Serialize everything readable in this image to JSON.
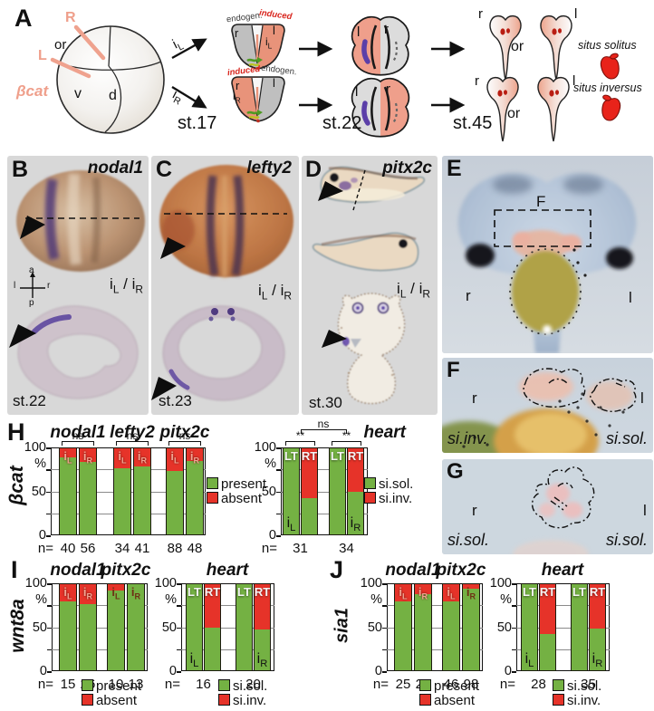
{
  "colors": {
    "present_green": "#74b143",
    "absent_red": "#e63329",
    "salmon": "#ef9f8b",
    "purple_stain": "#5b3fa8",
    "panel_bg": "#d8d8d8",
    "heart_red": "#e8231a"
  },
  "panels": {
    "a": {
      "label": "A",
      "egg": {
        "r": "R",
        "or": "or",
        "l": "L",
        "gene": "βcat",
        "v": "v",
        "d": "d"
      },
      "inject_left": "iL",
      "inject_right": "iR",
      "st17": "st.17",
      "st22": "st.22",
      "st45": "st.45",
      "grp_top": {
        "left_label": "endogen.",
        "right_label": "induced",
        "l_half": "r",
        "r_half": "l",
        "injected": "iL"
      },
      "grp_bottom": {
        "left_label": "induced",
        "right_label": "endogen.",
        "l_half": "r",
        "injected": "iR",
        "r_half": "l"
      },
      "neurula_top": {
        "left": "l",
        "right": "r"
      },
      "neurula_bottom": {
        "left": "l",
        "right": "r"
      },
      "tad_top": {
        "left": "r",
        "mid": "or",
        "right": "l"
      },
      "tad_bottom": {
        "left": "r",
        "mid": "or",
        "right": "l"
      },
      "situs_solitus": "situs solitus",
      "situs_inversus": "situs inversus"
    },
    "b": {
      "label": "B",
      "gene": "nodal1",
      "compass": {
        "a": "a",
        "p": "p",
        "l": "l",
        "r": "r"
      },
      "condition": "iL / iR",
      "stage": "st.22"
    },
    "c": {
      "label": "C",
      "gene": "lefty2",
      "condition": "iL / iR",
      "stage": "st.23"
    },
    "d": {
      "label": "D",
      "gene": "pitx2c",
      "condition": "iL / iR",
      "stage": "st.30"
    },
    "e": {
      "label": "E",
      "inset_label": "F",
      "left": "r",
      "right": "l"
    },
    "f": {
      "label": "F",
      "left": "r",
      "right": "l",
      "status_left": "si.inv.",
      "status_right": "si.sol."
    },
    "g": {
      "label": "G",
      "left": "r",
      "right": "l",
      "status_left": "si.sol.",
      "status_right": "si.sol."
    }
  },
  "chart_data": [
    {
      "id": "h-genes",
      "panel_label": "H",
      "row_label": "βcat",
      "type": "bar",
      "stacked": true,
      "ylabel": "%",
      "yticks": [
        100,
        50,
        0
      ],
      "ylim": [
        0,
        100
      ],
      "n_prefix": "n=",
      "groups": [
        {
          "title": "nodal1",
          "sig": "ns",
          "bars": [
            {
              "label": "iL",
              "value_pct": 90,
              "n": 40
            },
            {
              "label": "iR",
              "value_pct": 84,
              "n": 56
            }
          ]
        },
        {
          "title": "lefty2",
          "sig": "ns",
          "bars": [
            {
              "label": "iL",
              "value_pct": 77,
              "n": 34
            },
            {
              "label": "iR",
              "value_pct": 79,
              "n": 41
            }
          ]
        },
        {
          "title": "pitx2c",
          "sig": "ns",
          "bars": [
            {
              "label": "iL",
              "value_pct": 74,
              "n": 88
            },
            {
              "label": "iR",
              "value_pct": 85,
              "n": 48
            }
          ]
        }
      ],
      "legend": [
        {
          "color": "#74b143",
          "label": "present"
        },
        {
          "color": "#e63329",
          "label": "absent"
        }
      ]
    },
    {
      "id": "h-heart",
      "title": "heart",
      "type": "bar",
      "stacked": true,
      "ylabel": "%",
      "yticks": [
        100,
        50,
        0
      ],
      "ylim": [
        0,
        100
      ],
      "n_prefix": "n=",
      "span_sig": "ns",
      "groups": [
        {
          "sig": "**",
          "n": 31,
          "bars": [
            {
              "label": "LT",
              "value_pct": 100,
              "bottom_label": "iL"
            },
            {
              "label": "RT",
              "value_pct": 42
            }
          ]
        },
        {
          "sig": "**",
          "n": 34,
          "bars": [
            {
              "label": "LT",
              "value_pct": 100
            },
            {
              "label": "RT",
              "value_pct": 49,
              "bottom_label": "iR"
            }
          ]
        }
      ],
      "legend": [
        {
          "color": "#74b143",
          "label": "si.sol."
        },
        {
          "color": "#e63329",
          "label": "si.inv."
        }
      ]
    },
    {
      "id": "i-genes",
      "panel_label": "I",
      "row_label": "wnt8a",
      "type": "bar",
      "stacked": true,
      "ylabel": "%",
      "yticks": [
        100,
        50,
        0
      ],
      "ylim": [
        0,
        100
      ],
      "n_prefix": "n=",
      "groups": [
        {
          "title": "nodal1",
          "bars": [
            {
              "label": "iL",
              "value_pct": 80,
              "n": 15
            },
            {
              "label": "iR",
              "value_pct": 77,
              "n": 26
            }
          ]
        },
        {
          "title": "pitx2c",
          "bars": [
            {
              "label": "iL",
              "value_pct": 93,
              "n": 10
            },
            {
              "label": "iR",
              "value_pct": 100,
              "n": 13
            }
          ]
        }
      ],
      "legend": [
        {
          "color": "#74b143",
          "label": "present"
        },
        {
          "color": "#e63329",
          "label": "absent"
        }
      ]
    },
    {
      "id": "i-heart",
      "title": "heart",
      "type": "bar",
      "stacked": true,
      "ylabel": "%",
      "yticks": [
        100,
        50,
        0
      ],
      "ylim": [
        0,
        100
      ],
      "n_prefix": "n=",
      "groups": [
        {
          "n": 16,
          "bars": [
            {
              "label": "LT",
              "value_pct": 100,
              "bottom_label": "iL"
            },
            {
              "label": "RT",
              "value_pct": 50
            }
          ]
        },
        {
          "n": 20,
          "bars": [
            {
              "label": "LT",
              "value_pct": 100
            },
            {
              "label": "RT",
              "value_pct": 47,
              "bottom_label": "iR"
            }
          ]
        }
      ],
      "legend": [
        {
          "color": "#74b143",
          "label": "si.sol."
        },
        {
          "color": "#e63329",
          "label": "si.inv."
        }
      ]
    },
    {
      "id": "j-genes",
      "panel_label": "J",
      "row_label": "sia1",
      "type": "bar",
      "stacked": true,
      "ylabel": "%",
      "yticks": [
        100,
        50,
        0
      ],
      "ylim": [
        0,
        100
      ],
      "n_prefix": "n=",
      "groups": [
        {
          "title": "nodal1",
          "bars": [
            {
              "label": "iL",
              "value_pct": 80,
              "n": 25
            },
            {
              "label": "iR",
              "value_pct": 88,
              "n": 22
            }
          ]
        },
        {
          "title": "pitx2c",
          "bars": [
            {
              "label": "iL",
              "value_pct": 80,
              "n": 46
            },
            {
              "label": "iR",
              "value_pct": 95,
              "n": 98
            }
          ]
        }
      ],
      "legend": [
        {
          "color": "#74b143",
          "label": "present"
        },
        {
          "color": "#e63329",
          "label": "absent"
        }
      ]
    },
    {
      "id": "j-heart",
      "title": "heart",
      "type": "bar",
      "stacked": true,
      "ylabel": "%",
      "yticks": [
        100,
        50,
        0
      ],
      "ylim": [
        0,
        100
      ],
      "n_prefix": "n=",
      "groups": [
        {
          "n": 28,
          "bars": [
            {
              "label": "LT",
              "value_pct": 100,
              "bottom_label": "iL"
            },
            {
              "label": "RT",
              "value_pct": 42
            }
          ]
        },
        {
          "n": 35,
          "bars": [
            {
              "label": "LT",
              "value_pct": 100
            },
            {
              "label": "RT",
              "value_pct": 48,
              "bottom_label": "iR"
            }
          ]
        }
      ],
      "legend": [
        {
          "color": "#74b143",
          "label": "si.sol."
        },
        {
          "color": "#e63329",
          "label": "si.inv."
        }
      ]
    }
  ]
}
